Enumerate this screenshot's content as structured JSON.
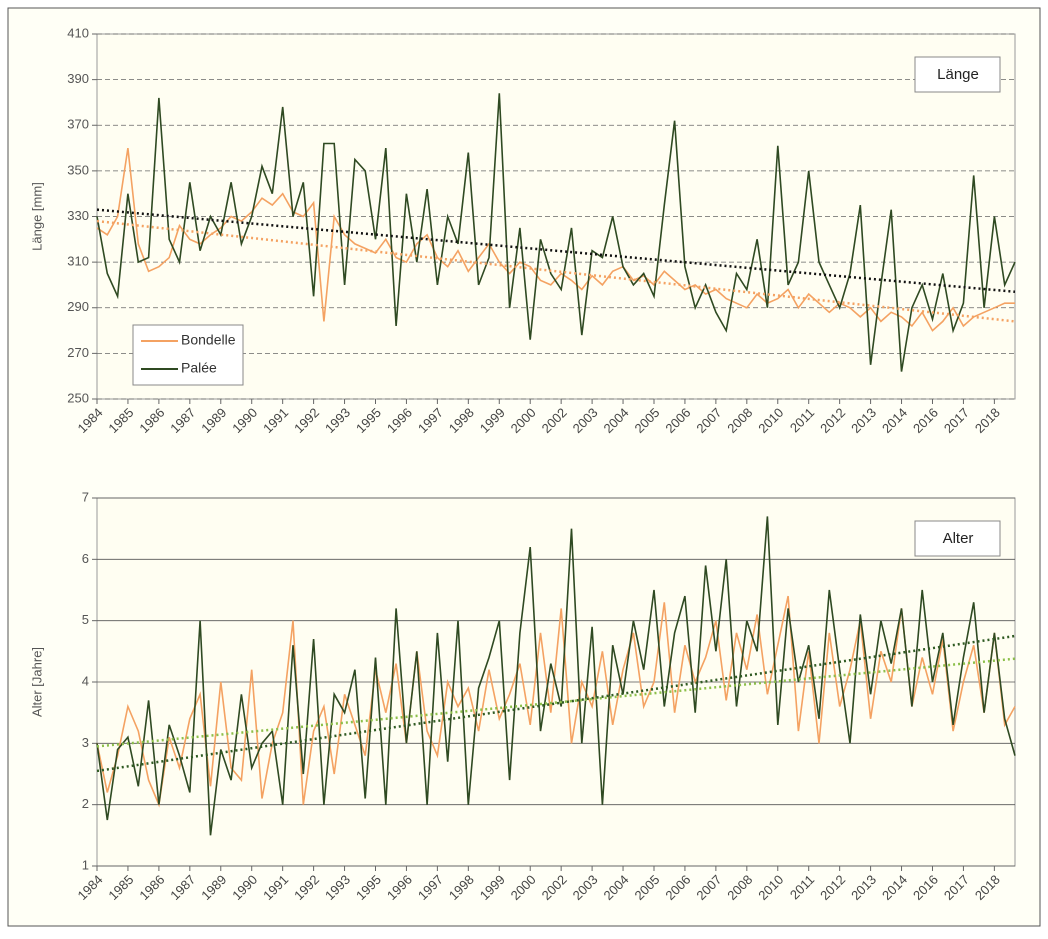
{
  "chart_data": [
    {
      "type": "line",
      "title": "Länge",
      "y_label": "Länge [mm]",
      "grid": true,
      "grid_style": "dashed",
      "legend": "lower left",
      "categories": [
        "1984",
        null,
        null,
        "1985",
        null,
        null,
        "1986",
        null,
        null,
        "1987",
        null,
        null,
        "1989",
        null,
        null,
        "1990",
        null,
        null,
        "1991",
        null,
        null,
        "1992",
        null,
        null,
        "1993",
        null,
        null,
        "1995",
        null,
        null,
        "1996",
        null,
        null,
        "1997",
        null,
        null,
        "1998",
        null,
        null,
        "1999",
        null,
        null,
        "2000",
        null,
        null,
        "2002",
        null,
        null,
        "2003",
        null,
        null,
        "2004",
        null,
        null,
        "2005",
        null,
        null,
        "2006",
        null,
        null,
        "2007",
        null,
        null,
        "2008",
        null,
        null,
        "2010",
        null,
        null,
        "2011",
        null,
        null,
        "2012",
        null,
        null,
        "2013",
        null,
        null,
        "2014",
        null,
        null,
        "2016",
        null,
        null,
        "2017",
        null,
        null,
        "2018",
        null,
        null
      ],
      "ylim": [
        250,
        410
      ],
      "yticks": [
        250,
        270,
        290,
        310,
        330,
        350,
        370,
        390,
        410
      ],
      "series": [
        {
          "name": "Bondelle",
          "color": "#f4a262",
          "trend": [
            328,
            284
          ],
          "values": [
            325,
            322,
            330,
            360,
            318,
            306,
            308,
            312,
            326,
            320,
            318,
            322,
            325,
            330,
            328,
            332,
            338,
            335,
            340,
            332,
            330,
            336,
            284,
            330,
            322,
            318,
            316,
            314,
            320,
            312,
            310,
            318,
            322,
            312,
            308,
            315,
            306,
            312,
            318,
            310,
            305,
            310,
            308,
            302,
            300,
            305,
            302,
            298,
            304,
            300,
            306,
            308,
            302,
            304,
            300,
            306,
            302,
            298,
            300,
            296,
            298,
            294,
            292,
            290,
            296,
            292,
            294,
            298,
            290,
            296,
            292,
            288,
            292,
            290,
            286,
            290,
            284,
            288,
            286,
            282,
            288,
            280,
            284,
            290,
            282,
            286,
            288,
            290,
            292,
            292
          ]
        },
        {
          "name": "Palée",
          "color": "#2f4a22",
          "trend": [
            333,
            297
          ],
          "values": [
            330,
            305,
            295,
            340,
            310,
            312,
            382,
            320,
            310,
            345,
            315,
            330,
            322,
            345,
            318,
            330,
            352,
            340,
            378,
            330,
            345,
            295,
            362,
            362,
            300,
            355,
            350,
            320,
            360,
            282,
            340,
            310,
            342,
            300,
            330,
            318,
            358,
            300,
            312,
            384,
            290,
            325,
            276,
            320,
            305,
            298,
            325,
            278,
            315,
            312,
            330,
            308,
            300,
            305,
            295,
            335,
            372,
            308,
            290,
            300,
            288,
            280,
            305,
            298,
            320,
            290,
            361,
            300,
            310,
            350,
            310,
            300,
            290,
            305,
            335,
            265,
            300,
            333,
            262,
            290,
            300,
            285,
            305,
            280,
            292,
            348,
            290,
            330,
            300,
            310
          ]
        }
      ]
    },
    {
      "type": "line",
      "title": "Alter",
      "y_label": "Alter [Jahre]",
      "grid": true,
      "grid_style": "solid",
      "categories": [
        "1984",
        null,
        null,
        "1985",
        null,
        null,
        "1986",
        null,
        null,
        "1987",
        null,
        null,
        "1989",
        null,
        null,
        "1990",
        null,
        null,
        "1991",
        null,
        null,
        "1992",
        null,
        null,
        "1993",
        null,
        null,
        "1995",
        null,
        null,
        "1996",
        null,
        null,
        "1997",
        null,
        null,
        "1998",
        null,
        null,
        "1999",
        null,
        null,
        "2000",
        null,
        null,
        "2002",
        null,
        null,
        "2003",
        null,
        null,
        "2004",
        null,
        null,
        "2005",
        null,
        null,
        "2006",
        null,
        null,
        "2007",
        null,
        null,
        "2008",
        null,
        null,
        "2010",
        null,
        null,
        "2011",
        null,
        null,
        "2012",
        null,
        null,
        "2013",
        null,
        null,
        "2014",
        null,
        null,
        "2016",
        null,
        null,
        "2017",
        null,
        null,
        "2018",
        null,
        null
      ],
      "ylim": [
        1,
        7
      ],
      "yticks": [
        1,
        2,
        3,
        4,
        5,
        6,
        7
      ],
      "series": [
        {
          "color": "#f4a262",
          "trend": [
            2.95,
            4.38
          ],
          "trend_color": "#8cbf4a",
          "values": [
            3.0,
            2.2,
            2.8,
            3.6,
            3.2,
            2.4,
            2.0,
            3.1,
            2.6,
            3.4,
            3.8,
            2.3,
            4.0,
            2.6,
            2.4,
            4.2,
            2.1,
            3.0,
            3.5,
            5.0,
            2.0,
            3.2,
            3.6,
            2.5,
            3.8,
            3.3,
            2.8,
            4.2,
            3.5,
            4.3,
            3.0,
            4.5,
            3.2,
            2.8,
            4.0,
            3.6,
            3.9,
            3.2,
            4.2,
            3.4,
            3.8,
            4.3,
            3.3,
            4.8,
            3.5,
            5.2,
            3.0,
            4.0,
            3.6,
            4.5,
            3.3,
            4.2,
            4.8,
            3.6,
            4.0,
            5.3,
            3.5,
            4.6,
            4.0,
            4.4,
            5.0,
            3.7,
            4.8,
            4.2,
            5.1,
            3.8,
            4.6,
            5.4,
            3.2,
            4.5,
            3.0,
            4.8,
            3.6,
            4.2,
            5.0,
            3.4,
            4.5,
            4.0,
            5.2,
            3.6,
            4.4,
            3.8,
            4.7,
            3.2,
            4.0,
            4.6,
            3.5,
            4.8,
            3.3,
            3.6
          ]
        },
        {
          "color": "#2f4a22",
          "trend": [
            2.55,
            4.75
          ],
          "trend_color": "#2f5a22",
          "values": [
            3.0,
            1.75,
            2.9,
            3.1,
            2.3,
            3.7,
            2.0,
            3.3,
            2.8,
            2.2,
            5.0,
            1.5,
            2.9,
            2.4,
            3.8,
            2.6,
            3.0,
            3.2,
            2.0,
            4.6,
            2.5,
            4.7,
            2.0,
            3.8,
            3.5,
            4.2,
            2.1,
            4.4,
            2.0,
            5.2,
            3.0,
            4.5,
            2.0,
            4.8,
            2.7,
            5.0,
            2.0,
            3.9,
            4.4,
            5.0,
            2.4,
            4.8,
            6.2,
            3.2,
            4.3,
            3.6,
            6.5,
            3.0,
            4.9,
            2.0,
            4.6,
            3.8,
            5.0,
            4.2,
            5.5,
            3.6,
            4.8,
            5.4,
            3.5,
            5.9,
            4.5,
            6.0,
            3.6,
            5.0,
            4.5,
            6.7,
            3.3,
            5.2,
            4.0,
            4.6,
            3.4,
            5.5,
            4.2,
            3.0,
            5.1,
            3.8,
            5.0,
            4.3,
            5.2,
            3.6,
            5.5,
            4.0,
            4.8,
            3.3,
            4.4,
            5.3,
            3.5,
            4.8,
            3.4,
            2.8
          ]
        }
      ]
    }
  ]
}
